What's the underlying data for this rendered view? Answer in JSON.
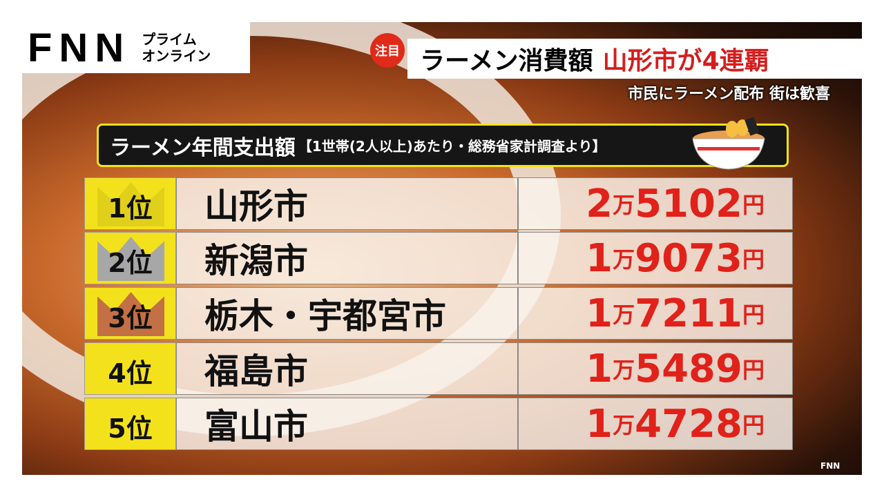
{
  "logo": {
    "brand": "FNN",
    "subtitle_1": "プライム",
    "subtitle_2": "オンライン"
  },
  "headline": {
    "badge": "注目",
    "main": "ラーメン消費額",
    "highlight": "山形市が4連覇",
    "sub": "市民にラーメン配布 街は歓喜"
  },
  "table": {
    "title": "ラーメン年間支出額",
    "note": "【1世帯(2人以上)あたり・総務省家計調査より】",
    "rows": [
      {
        "rank": "1位",
        "city": "山形市",
        "man": "2",
        "man_unit": "万",
        "rest": "5102",
        "yen": "円",
        "crown_color": "#f3e21b"
      },
      {
        "rank": "2位",
        "city": "新潟市",
        "man": "1",
        "man_unit": "万",
        "rest": "9073",
        "yen": "円",
        "crown_color": "#b5b5b5"
      },
      {
        "rank": "3位",
        "city": "栃木・宇都宮市",
        "man": "1",
        "man_unit": "万",
        "rest": "7211",
        "yen": "円",
        "crown_color": "#d47a4a"
      },
      {
        "rank": "4位",
        "city": "福島市",
        "man": "1",
        "man_unit": "万",
        "rest": "5489",
        "yen": "円"
      },
      {
        "rank": "5位",
        "city": "富山市",
        "man": "1",
        "man_unit": "万",
        "rest": "4728",
        "yen": "円"
      }
    ]
  },
  "colors": {
    "accent_yellow": "#f3e21b",
    "amount_red": "#e0221a"
  },
  "watermark": "FNN"
}
